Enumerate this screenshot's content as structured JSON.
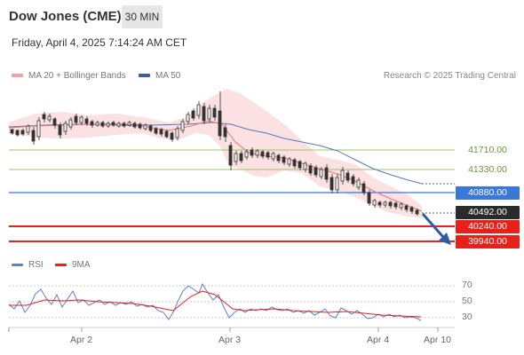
{
  "header": {
    "title": "Dow Jones (CME)",
    "timeframe": "30 MIN"
  },
  "date_line": "Friday, April 4, 2025 7:14:24 AM CET",
  "legend": {
    "ma20": "MA 20 + Bollinger Bands",
    "ma50": "MA 50",
    "ma20_color": "#f08080",
    "ma50_color": "#3c5fa0"
  },
  "credit": "Research © 2025 Trading Central",
  "levels": {
    "r1": "41710.00",
    "r2": "41330.00",
    "r3": "40880.00",
    "last": "40492.00",
    "s1": "40240.00",
    "s2": "39940.00"
  },
  "rsi_legend": {
    "rsi": "RSI",
    "ma9": "9MA",
    "rsi_color": "#5a80d0",
    "ma9_color": "#e8201a"
  },
  "rsi_ticks": [
    "70",
    "50",
    "30"
  ],
  "x_labels": [
    "Apr 2",
    "Apr 3",
    "Apr 4",
    "Apr 10"
  ]
}
